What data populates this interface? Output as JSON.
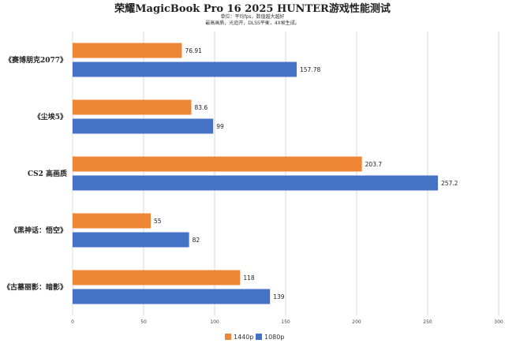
{
  "chart_data": {
    "type": "bar",
    "orientation": "horizontal",
    "title": "荣耀MagicBook Pro 16 2025 HUNTER游戏性能测试",
    "subtitle_lines": [
      "单位：平均fps，数值越大越好",
      "最高画质，光追开，DLSS平衡，4X帧生成。"
    ],
    "categories": [
      "《赛博朋克2077》",
      "《尘埃5》",
      "CS2 高画质",
      "《黑神话：悟空》",
      "《古墓丽影：暗影》"
    ],
    "series": [
      {
        "name": "1440p",
        "color": "#ee8636",
        "values": [
          76.91,
          83.6,
          203.7,
          55,
          118
        ]
      },
      {
        "name": "1080p",
        "color": "#4472c4",
        "values": [
          157.78,
          99,
          257.2,
          82,
          139
        ]
      }
    ],
    "value_labels": [
      [
        "76.91",
        "83.6",
        "203.7",
        "55",
        "118"
      ],
      [
        "157.78",
        "99",
        "257.2",
        "82",
        "139"
      ]
    ],
    "xlim": [
      0,
      300
    ],
    "xticks": [
      0,
      50,
      100,
      150,
      200,
      250,
      300
    ],
    "grid": true,
    "legend_position": "bottom"
  }
}
